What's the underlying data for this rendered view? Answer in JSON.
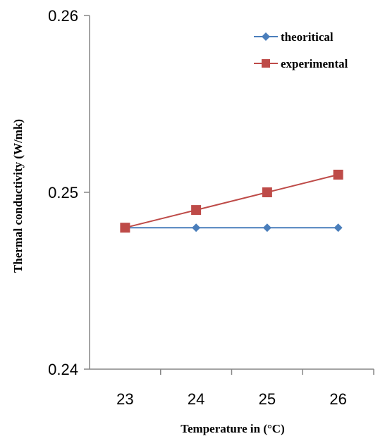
{
  "chart_data": {
    "type": "line",
    "title": "",
    "xlabel": "Temperature in (°C)",
    "ylabel": "Thermal conductivity (W/mk)",
    "categories": [
      "23",
      "24",
      "25",
      "26"
    ],
    "ylim": [
      0.24,
      0.26
    ],
    "y_ticks": [
      "0.24",
      "0.25",
      "0.26"
    ],
    "grid": false,
    "legend_position": "top-right",
    "series": [
      {
        "name": "theoritical",
        "values": [
          0.248,
          0.248,
          0.248,
          0.248
        ],
        "color": "#4a7ebb",
        "marker": "diamond"
      },
      {
        "name": "experimental",
        "values": [
          0.248,
          0.249,
          0.25,
          0.251
        ],
        "color": "#be4b48",
        "marker": "square"
      }
    ]
  }
}
